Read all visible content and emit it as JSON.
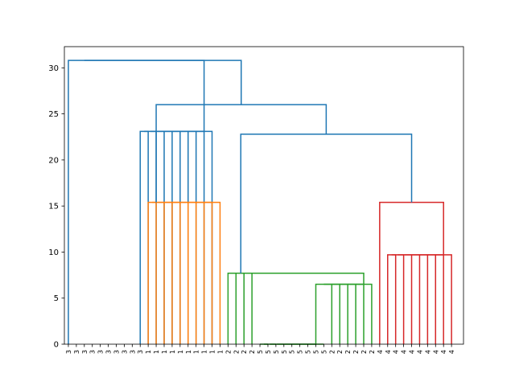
{
  "chart_data": {
    "type": "dendrogram",
    "title": "",
    "xlabel": "",
    "ylabel": "",
    "ylim": [
      0,
      32.3
    ],
    "yticks": [
      0,
      5,
      10,
      15,
      20,
      25,
      30
    ],
    "grid": false,
    "legend": "none",
    "leaf_labels": [
      "3",
      "3",
      "3",
      "3",
      "3",
      "3",
      "3",
      "3",
      "3",
      "3",
      "1",
      "1",
      "1",
      "1",
      "1",
      "1",
      "1",
      "1",
      "1",
      "1",
      "2",
      "2",
      "2",
      "2",
      "5",
      "5",
      "5",
      "5",
      "5",
      "5",
      "5",
      "5",
      "5",
      "2",
      "2",
      "2",
      "2",
      "2",
      "2",
      "4",
      "4",
      "4",
      "4",
      "4",
      "4",
      "4",
      "4",
      "4",
      "4"
    ],
    "colors": {
      "above": "#1f77b4",
      "c1": "#ff7f0e",
      "c2": "#2ca02c",
      "c3": "#d62728"
    },
    "links": [
      {
        "x": [
          95,
          95,
          105,
          105
        ],
        "y": [
          0,
          23.1,
          23.1,
          0
        ],
        "color": "above"
      },
      {
        "x": [
          100,
          100,
          115,
          115
        ],
        "y": [
          23.1,
          23.1,
          23.1,
          0
        ],
        "color": "above"
      },
      {
        "x": [
          107.5,
          107.5,
          125,
          125
        ],
        "y": [
          23.1,
          23.1,
          23.1,
          0
        ],
        "color": "above"
      },
      {
        "x": [
          116.25,
          116.25,
          135,
          135
        ],
        "y": [
          23.1,
          23.1,
          23.1,
          0
        ],
        "color": "above"
      },
      {
        "x": [
          125.6,
          125.6,
          145,
          145
        ],
        "y": [
          23.1,
          23.1,
          23.1,
          0
        ],
        "color": "above"
      },
      {
        "x": [
          135.3,
          135.3,
          155,
          155
        ],
        "y": [
          23.1,
          23.1,
          23.1,
          0
        ],
        "color": "above"
      },
      {
        "x": [
          145.2,
          145.2,
          165,
          165
        ],
        "y": [
          23.1,
          23.1,
          23.1,
          0
        ],
        "color": "above"
      },
      {
        "x": [
          155.1,
          155.1,
          175,
          175
        ],
        "y": [
          23.1,
          23.1,
          23.1,
          0
        ],
        "color": "above"
      },
      {
        "x": [
          165.0,
          165.0,
          185,
          185
        ],
        "y": [
          23.1,
          23.1,
          23.1,
          0
        ],
        "color": "above"
      },
      {
        "x": [
          5,
          5,
          175.0,
          175.0
        ],
        "y": [
          0,
          30.8,
          30.8,
          23.1
        ],
        "color": "above"
      },
      {
        "x": [
          105,
          105,
          115,
          115
        ],
        "y": [
          0,
          15.4,
          15.4,
          0
        ],
        "color": "c1"
      },
      {
        "x": [
          110,
          110,
          125,
          125
        ],
        "y": [
          15.4,
          15.4,
          15.4,
          0
        ],
        "color": "c1"
      },
      {
        "x": [
          117.5,
          117.5,
          135,
          135
        ],
        "y": [
          15.4,
          15.4,
          15.4,
          0
        ],
        "color": "c1"
      },
      {
        "x": [
          126.25,
          126.25,
          145,
          145
        ],
        "y": [
          15.4,
          15.4,
          15.4,
          0
        ],
        "color": "c1"
      },
      {
        "x": [
          135.6,
          135.6,
          155,
          155
        ],
        "y": [
          15.4,
          15.4,
          15.4,
          0
        ],
        "color": "c1"
      },
      {
        "x": [
          145.3,
          145.3,
          165,
          165
        ],
        "y": [
          15.4,
          15.4,
          15.4,
          0
        ],
        "color": "c1"
      },
      {
        "x": [
          155.2,
          155.2,
          175,
          175
        ],
        "y": [
          15.4,
          15.4,
          15.4,
          0
        ],
        "color": "c1"
      },
      {
        "x": [
          165.1,
          165.1,
          185,
          185
        ],
        "y": [
          15.4,
          15.4,
          15.4,
          0
        ],
        "color": "c1"
      },
      {
        "x": [
          175.0,
          175.0,
          195,
          195
        ],
        "y": [
          15.4,
          15.4,
          15.4,
          0
        ],
        "color": "c1"
      },
      {
        "x": [
          245,
          245,
          255,
          255
        ],
        "y": [
          0,
          0,
          0,
          0
        ],
        "color": "c2"
      },
      {
        "x": [
          250,
          250,
          265,
          265
        ],
        "y": [
          0,
          0,
          0,
          0
        ],
        "color": "c2"
      },
      {
        "x": [
          257.5,
          257.5,
          275,
          275
        ],
        "y": [
          0,
          0,
          0,
          0
        ],
        "color": "c2"
      },
      {
        "x": [
          266.25,
          266.25,
          285,
          285
        ],
        "y": [
          0,
          0,
          0,
          0
        ],
        "color": "c2"
      },
      {
        "x": [
          275.6,
          275.6,
          295,
          295
        ],
        "y": [
          0,
          0,
          0,
          0
        ],
        "color": "c2"
      },
      {
        "x": [
          285.3,
          285.3,
          305,
          305
        ],
        "y": [
          0,
          0,
          0,
          0
        ],
        "color": "c2"
      },
      {
        "x": [
          295.2,
          295.2,
          315,
          315
        ],
        "y": [
          0,
          0,
          0,
          0
        ],
        "color": "c2"
      },
      {
        "x": [
          305.1,
          305.1,
          325,
          325
        ],
        "y": [
          0,
          0,
          0,
          0
        ],
        "color": "c2"
      },
      {
        "x": [
          315.0,
          315.0,
          335,
          335
        ],
        "y": [
          0,
          6.5,
          6.5,
          0
        ],
        "color": "c2"
      },
      {
        "x": [
          325.0,
          325.0,
          345,
          345
        ],
        "y": [
          6.5,
          6.5,
          6.5,
          0
        ],
        "color": "c2"
      },
      {
        "x": [
          335.0,
          335.0,
          355,
          355
        ],
        "y": [
          6.5,
          6.5,
          6.5,
          0
        ],
        "color": "c2"
      },
      {
        "x": [
          345.0,
          345.0,
          365,
          365
        ],
        "y": [
          6.5,
          6.5,
          6.5,
          0
        ],
        "color": "c2"
      },
      {
        "x": [
          355.0,
          355.0,
          375,
          375
        ],
        "y": [
          6.5,
          6.5,
          6.5,
          0
        ],
        "color": "c2"
      },
      {
        "x": [
          365.0,
          365.0,
          385,
          385
        ],
        "y": [
          6.5,
          6.5,
          6.5,
          0
        ],
        "color": "c2"
      },
      {
        "x": [
          205,
          205,
          215,
          215
        ],
        "y": [
          0,
          7.7,
          7.7,
          0
        ],
        "color": "c2"
      },
      {
        "x": [
          210,
          210,
          225,
          225
        ],
        "y": [
          7.7,
          7.7,
          7.7,
          0
        ],
        "color": "c2"
      },
      {
        "x": [
          217.5,
          217.5,
          235,
          235
        ],
        "y": [
          7.7,
          7.7,
          7.7,
          0
        ],
        "color": "c2"
      },
      {
        "x": [
          226.25,
          226.25,
          375.0,
          375.0
        ],
        "y": [
          7.7,
          7.7,
          7.7,
          6.5
        ],
        "color": "c2"
      },
      {
        "x": [
          405,
          405,
          415,
          415
        ],
        "y": [
          0,
          9.7,
          9.7,
          0
        ],
        "color": "c3"
      },
      {
        "x": [
          410,
          410,
          425,
          425
        ],
        "y": [
          9.7,
          9.7,
          9.7,
          0
        ],
        "color": "c3"
      },
      {
        "x": [
          417.5,
          417.5,
          435,
          435
        ],
        "y": [
          9.7,
          9.7,
          9.7,
          0
        ],
        "color": "c3"
      },
      {
        "x": [
          426.25,
          426.25,
          445,
          445
        ],
        "y": [
          9.7,
          9.7,
          9.7,
          0
        ],
        "color": "c3"
      },
      {
        "x": [
          435.6,
          435.6,
          455,
          455
        ],
        "y": [
          9.7,
          9.7,
          9.7,
          0
        ],
        "color": "c3"
      },
      {
        "x": [
          445.3,
          445.3,
          465,
          465
        ],
        "y": [
          9.7,
          9.7,
          9.7,
          0
        ],
        "color": "c3"
      },
      {
        "x": [
          455.2,
          455.2,
          475,
          475
        ],
        "y": [
          9.7,
          9.7,
          9.7,
          0
        ],
        "color": "c3"
      },
      {
        "x": [
          465.1,
          465.1,
          485,
          485
        ],
        "y": [
          9.7,
          9.7,
          9.7,
          0
        ],
        "color": "c3"
      },
      {
        "x": [
          395,
          395,
          475.0,
          475.0
        ],
        "y": [
          0,
          15.4,
          15.4,
          9.7
        ],
        "color": "c3"
      },
      {
        "x": [
          221.0,
          221.0,
          435.0,
          435.0
        ],
        "y": [
          7.7,
          22.8,
          22.8,
          15.4
        ],
        "color": "above"
      },
      {
        "x": [
          115,
          115,
          328.0,
          328.0
        ],
        "y": [
          15.4,
          26.0,
          26.0,
          22.8
        ],
        "color": "above"
      },
      {
        "x": [
          25,
          25,
          221.5,
          221.5
        ],
        "y": [
          30.8,
          30.8,
          30.8,
          26.0
        ],
        "color": "above"
      }
    ]
  }
}
